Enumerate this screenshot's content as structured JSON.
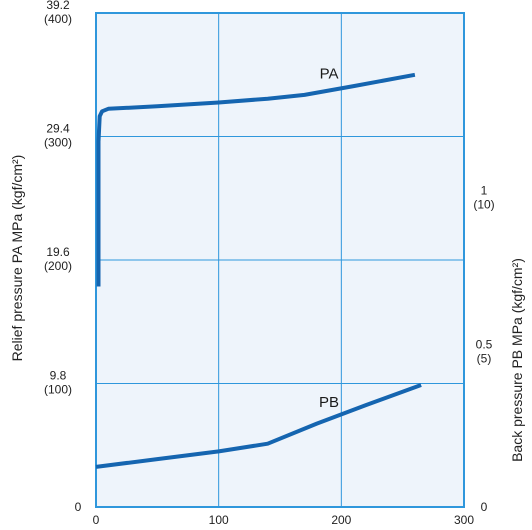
{
  "chart_data": {
    "type": "line",
    "xlabel": "",
    "xlim": [
      0,
      300
    ],
    "x_ticks": [
      "0",
      "100",
      "200",
      "300"
    ],
    "left_axis": {
      "label": "Relief  pressure  PA  MPa (kgf/cm²)",
      "ylim": [
        0,
        39.2
      ],
      "ticks": [
        {
          "value": 0,
          "line1": "0",
          "line2": ""
        },
        {
          "value": 9.8,
          "line1": "9.8",
          "line2": "(100)"
        },
        {
          "value": 19.6,
          "line1": "19.6",
          "line2": "(200)"
        },
        {
          "value": 29.4,
          "line1": "29.4",
          "line2": "(300)"
        },
        {
          "value": 39.2,
          "line1": "39.2",
          "line2": "(400)"
        }
      ]
    },
    "right_axis": {
      "label": "Back  pressure  PB  MPa (kgf/cm²)",
      "ylim": [
        0,
        1.6
      ],
      "ticks": [
        {
          "value": 0,
          "line1": "0",
          "line2": ""
        },
        {
          "value": 0.5,
          "line1": "0.5",
          "line2": "(5)"
        },
        {
          "value": 1,
          "line1": "1",
          "line2": "(10)"
        }
      ]
    },
    "series": [
      {
        "name": "PA",
        "axis": "left",
        "x": [
          2,
          2,
          3,
          5,
          10,
          50,
          100,
          140,
          170,
          210,
          260
        ],
        "y": [
          17.5,
          29.0,
          31.0,
          31.4,
          31.6,
          31.8,
          32.1,
          32.4,
          32.7,
          33.4,
          34.3
        ]
      },
      {
        "name": "PB",
        "axis": "right",
        "x": [
          0,
          50,
          100,
          140,
          180,
          220,
          265
        ],
        "y": [
          0.13,
          0.155,
          0.18,
          0.205,
          0.27,
          0.33,
          0.395
        ]
      }
    ],
    "grid": true,
    "colors": {
      "line": "#1565b0",
      "plot_bg": "#eef4fb",
      "frame": "#2f97dc",
      "grid": "#2f97dc"
    }
  }
}
